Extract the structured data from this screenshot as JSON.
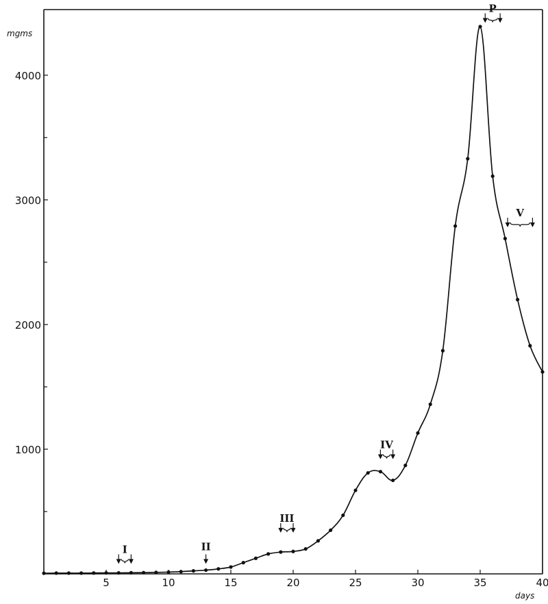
{
  "chart_data": {
    "type": "line",
    "title": "",
    "xlabel": "days",
    "ylabel": "mgms",
    "xlim": [
      0,
      40
    ],
    "ylim": [
      0,
      4450
    ],
    "x_ticks": [
      5,
      10,
      15,
      20,
      25,
      30,
      35,
      40
    ],
    "y_ticks_labeled": [
      1000,
      2000,
      3000,
      4000
    ],
    "y_ticks_minor": [
      500,
      1500,
      2500,
      3500
    ],
    "grid": false,
    "series": [
      {
        "x": [
          0,
          1,
          2,
          3,
          4,
          5,
          6,
          7,
          8,
          9,
          10,
          11,
          12,
          13,
          14,
          15,
          16,
          17,
          18,
          19,
          20,
          21,
          22,
          23,
          24,
          25,
          26,
          27,
          28,
          29,
          30,
          31,
          32,
          33,
          34,
          35,
          36,
          37,
          38,
          39,
          40
        ],
        "y": [
          5,
          6,
          6,
          6,
          7,
          8,
          8,
          9,
          10,
          12,
          14,
          18,
          24,
          30,
          40,
          55,
          90,
          125,
          160,
          175,
          180,
          200,
          265,
          350,
          470,
          670,
          810,
          820,
          750,
          870,
          1130,
          1360,
          1790,
          2790,
          3330,
          4390,
          3190,
          2690,
          2200,
          1830,
          1620
        ]
      }
    ],
    "annotations": [
      {
        "label": "I",
        "x_start": 6,
        "x_end": 7,
        "y": 80
      },
      {
        "label": "II",
        "x_start": 13,
        "x_end": 13,
        "y": 80
      },
      {
        "label": "III",
        "x_start": 19,
        "x_end": 20,
        "y": 330
      },
      {
        "label": "IV",
        "x_start": 27,
        "x_end": 28,
        "y": 920
      },
      {
        "label": "P",
        "x_start": 35.4,
        "x_end": 36.6,
        "y": 4420
      },
      {
        "label": "V",
        "x_start": 37.2,
        "x_end": 39.2,
        "y": 2780
      }
    ]
  }
}
